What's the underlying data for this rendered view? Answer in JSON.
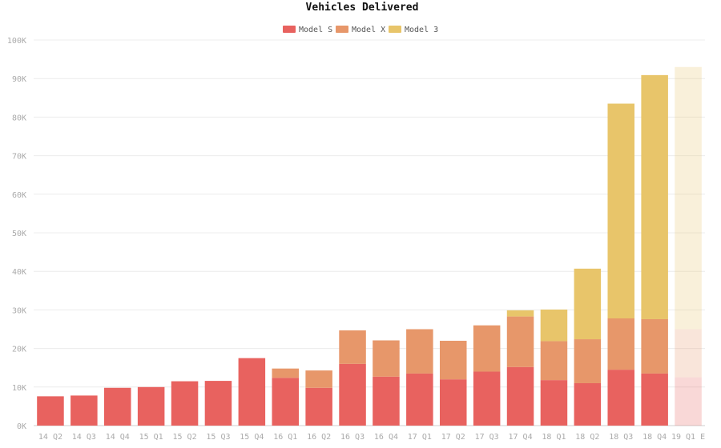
{
  "chart_data": {
    "type": "bar",
    "stacked": true,
    "title": "Vehicles Delivered",
    "categories": [
      "14 Q2",
      "14 Q3",
      "14 Q4",
      "15 Q1",
      "15 Q2",
      "15 Q3",
      "15 Q4",
      "16 Q1",
      "16 Q2",
      "16 Q3",
      "16 Q4",
      "17 Q1",
      "17 Q2",
      "17 Q3",
      "17 Q4",
      "18 Q1",
      "18 Q2",
      "18 Q3",
      "18 Q4",
      "19 Q1 E"
    ],
    "estimated_categories": [
      "19 Q1 E"
    ],
    "series": [
      {
        "name": "Model S",
        "color": "#e8625f",
        "values": [
          7600,
          7800,
          9800,
          10000,
          11500,
          11600,
          17500,
          12400,
          9800,
          16000,
          12700,
          13500,
          12000,
          14000,
          15200,
          11800,
          11000,
          14500,
          13500,
          12500
        ]
      },
      {
        "name": "Model X",
        "color": "#e7976a",
        "values": [
          0,
          0,
          0,
          0,
          0,
          0,
          0,
          2400,
          4500,
          8700,
          9400,
          11500,
          10000,
          12000,
          13100,
          10100,
          11400,
          13300,
          14100,
          12500
        ]
      },
      {
        "name": "Model 3",
        "color": "#e8c56a",
        "values": [
          0,
          0,
          0,
          0,
          0,
          0,
          0,
          0,
          0,
          0,
          0,
          0,
          0,
          0,
          1600,
          8200,
          18300,
          55700,
          63300,
          68000
        ]
      }
    ],
    "ylim": [
      0,
      100000
    ],
    "yticks": [
      0,
      10000,
      20000,
      30000,
      40000,
      50000,
      60000,
      70000,
      80000,
      90000,
      100000
    ],
    "ytick_labels": [
      "0K",
      "10K",
      "20K",
      "30K",
      "40K",
      "50K",
      "60K",
      "70K",
      "80K",
      "90K",
      "100K"
    ],
    "legend_position": "top-center",
    "grid": true
  }
}
